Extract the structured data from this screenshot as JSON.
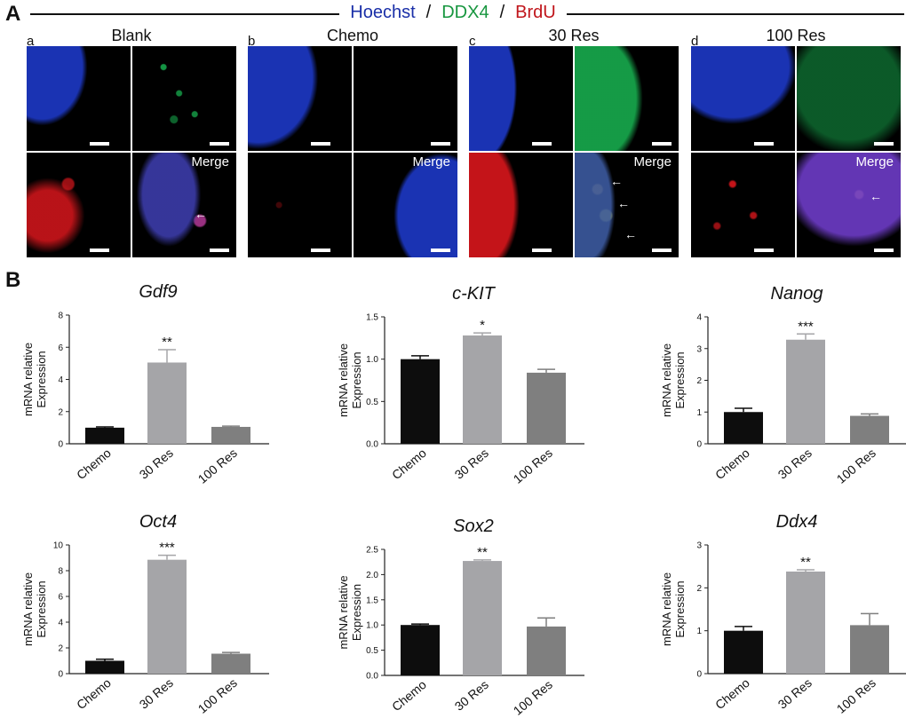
{
  "panel_a": {
    "letter": "A",
    "header": {
      "hoechst": "Hoechst",
      "ddx4": "DDX4",
      "brdu": "BrdU",
      "sep": "/"
    },
    "groups": [
      {
        "label": "a",
        "title": "Blank",
        "merge": "Merge"
      },
      {
        "label": "b",
        "title": "Chemo",
        "merge": "Merge"
      },
      {
        "label": "c",
        "title": "30 Res",
        "merge": "Merge"
      },
      {
        "label": "d",
        "title": "100 Res",
        "merge": "Merge"
      }
    ],
    "colors": {
      "hoechst": "#1a33b3",
      "ddx4": "#16a34a",
      "brdu": "#d9161c"
    }
  },
  "panel_b": {
    "letter": "B"
  },
  "chart_data": [
    {
      "type": "bar",
      "title": "Gdf9",
      "ylabel": "mRNA relative Expression",
      "categories": [
        "Chemo",
        "30 Res",
        "100 Res"
      ],
      "values": [
        1.0,
        5.05,
        1.05
      ],
      "errors": [
        0.05,
        0.8,
        0.05
      ],
      "significance": [
        "",
        "**",
        ""
      ],
      "ylim": [
        0,
        8
      ],
      "yticks": [
        0,
        2,
        4,
        6,
        8
      ],
      "ytick_labels": [
        "0",
        "2",
        "4",
        "6",
        "8"
      ]
    },
    {
      "type": "bar",
      "title": "c-KIT",
      "ylabel": "mRNA relative Expression",
      "categories": [
        "Chemo",
        "30 Res",
        "100 Res"
      ],
      "values": [
        1.0,
        1.28,
        0.84
      ],
      "errors": [
        0.04,
        0.03,
        0.04
      ],
      "significance": [
        "",
        "*",
        ""
      ],
      "ylim": [
        0,
        1.5
      ],
      "yticks": [
        0,
        0.5,
        1.0,
        1.5
      ],
      "ytick_labels": [
        "0.0",
        "0.5",
        "1.0",
        "1.5"
      ]
    },
    {
      "type": "bar",
      "title": "Nanog",
      "ylabel": "mRNA relative Expression",
      "categories": [
        "Chemo",
        "30 Res",
        "100 Res"
      ],
      "values": [
        1.0,
        3.28,
        0.88
      ],
      "errors": [
        0.12,
        0.18,
        0.06
      ],
      "significance": [
        "",
        "***",
        ""
      ],
      "ylim": [
        0,
        4
      ],
      "yticks": [
        0,
        1,
        2,
        3,
        4
      ],
      "ytick_labels": [
        "0",
        "1",
        "2",
        "3",
        "4"
      ]
    },
    {
      "type": "bar",
      "title": "Oct4",
      "ylabel": "mRNA relative Expression",
      "categories": [
        "Chemo",
        "30 Res",
        "100 Res"
      ],
      "values": [
        1.0,
        8.85,
        1.55
      ],
      "errors": [
        0.12,
        0.35,
        0.1
      ],
      "significance": [
        "",
        "***",
        ""
      ],
      "ylim": [
        0,
        10
      ],
      "yticks": [
        0,
        2,
        4,
        6,
        8,
        10
      ],
      "ytick_labels": [
        "0",
        "2",
        "4",
        "6",
        "8",
        "10"
      ]
    },
    {
      "type": "bar",
      "title": "Sox2",
      "ylabel": "mRNA relative Expression",
      "categories": [
        "Chemo",
        "30 Res",
        "100 Res"
      ],
      "values": [
        1.0,
        2.27,
        0.97
      ],
      "errors": [
        0.02,
        0.02,
        0.17
      ],
      "significance": [
        "",
        "**",
        ""
      ],
      "ylim": [
        0,
        2.5
      ],
      "yticks": [
        0,
        0.5,
        1.0,
        1.5,
        2.0,
        2.5
      ],
      "ytick_labels": [
        "0.0",
        "0.5",
        "1.0",
        "1.5",
        "2.0",
        "2.5"
      ]
    },
    {
      "type": "bar",
      "title": "Ddx4",
      "ylabel": "mRNA relative Expression",
      "categories": [
        "Chemo",
        "30 Res",
        "100 Res"
      ],
      "values": [
        1.0,
        2.38,
        1.13
      ],
      "errors": [
        0.1,
        0.04,
        0.27
      ],
      "significance": [
        "",
        "**",
        ""
      ],
      "ylim": [
        0,
        3
      ],
      "yticks": [
        0,
        1,
        2,
        3
      ],
      "ytick_labels": [
        "0",
        "1",
        "2",
        "3"
      ]
    }
  ],
  "bar_colors": [
    "#0d0d0d",
    "#a5a5a8",
    "#7f7f7f"
  ]
}
